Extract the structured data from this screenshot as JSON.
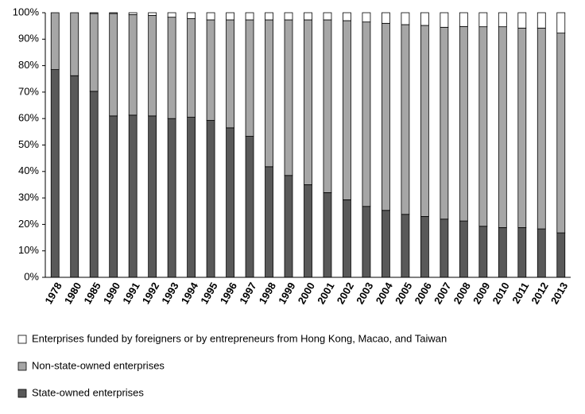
{
  "chart_data": {
    "type": "stacked-bar-100",
    "categories": [
      "1978",
      "1980",
      "1985",
      "1990",
      "1991",
      "1992",
      "1993",
      "1994",
      "1995",
      "1996",
      "1997",
      "1998",
      "1999",
      "2000",
      "2001",
      "2002",
      "2003",
      "2004",
      "2005",
      "2006",
      "2007",
      "2008",
      "2009",
      "2010",
      "2011",
      "2012",
      "2013"
    ],
    "series": [
      {
        "name": "State-owned enterprises",
        "color": "#595959",
        "values": [
          78.5,
          76.2,
          70.3,
          61,
          61.3,
          61,
          60,
          60.5,
          59.3,
          56.5,
          53.3,
          41.8,
          38.5,
          35,
          32,
          29.3,
          26.8,
          25.3,
          23.8,
          23,
          22,
          21.3,
          19.3,
          18.8,
          18.8,
          18.3,
          16.8
        ]
      },
      {
        "name": "Non-state-owned enterprises",
        "color": "#a6a6a6",
        "values": [
          21.5,
          23.8,
          29.4,
          38.7,
          38,
          38,
          38.3,
          37.3,
          38,
          40.8,
          44,
          55.5,
          58.8,
          62.3,
          65.3,
          67.7,
          69.7,
          70.7,
          71.7,
          72.2,
          72.5,
          73.5,
          75.4,
          75.9,
          75.4,
          75.9,
          75.5
        ]
      },
      {
        "name": "Enterprises funded by foreigners or by entrepreneurs from Hong Kong, Macao, and Taiwan",
        "color": "#ffffff",
        "values": [
          0,
          0,
          0.3,
          0.3,
          0.7,
          1,
          1.7,
          2.2,
          2.7,
          2.7,
          2.7,
          2.7,
          2.7,
          2.7,
          2.7,
          3,
          3.5,
          4,
          4.5,
          4.8,
          5.5,
          5.2,
          5.3,
          5.3,
          5.8,
          5.8,
          7.7
        ]
      }
    ],
    "ylim": [
      0,
      100
    ],
    "yticks": [
      {
        "value": 0,
        "label": "0%"
      },
      {
        "value": 10,
        "label": "10%"
      },
      {
        "value": 20,
        "label": "20%"
      },
      {
        "value": 30,
        "label": "30%"
      },
      {
        "value": 40,
        "label": "40%"
      },
      {
        "value": 50,
        "label": "50%"
      },
      {
        "value": 60,
        "label": "60%"
      },
      {
        "value": 70,
        "label": "70%"
      },
      {
        "value": 80,
        "label": "80%"
      },
      {
        "value": 90,
        "label": "90%"
      },
      {
        "value": 100,
        "label": "100%"
      }
    ],
    "legend": "bottom"
  }
}
